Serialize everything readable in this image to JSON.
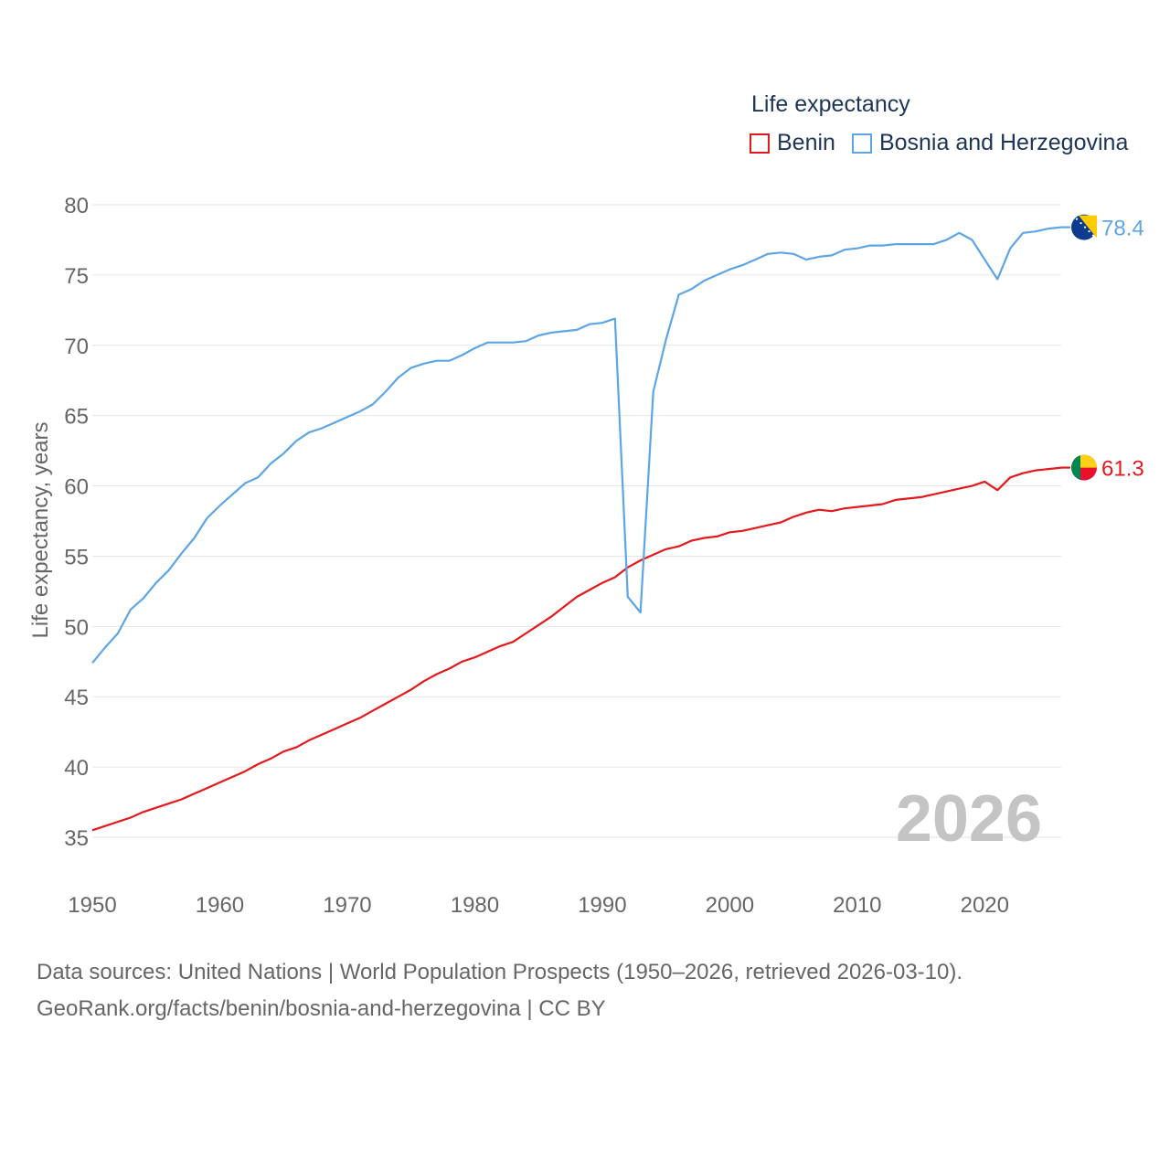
{
  "chart_data": {
    "type": "line",
    "legend_title": "Life expectancy",
    "ylabel": "Life expectancy, years",
    "xlabel": "",
    "ylim": [
      35,
      80
    ],
    "xlim": [
      1950,
      2026
    ],
    "yticks": [
      35,
      40,
      45,
      50,
      55,
      60,
      65,
      70,
      75,
      80
    ],
    "xticks": [
      1950,
      1960,
      1970,
      1980,
      1990,
      2000,
      2010,
      2020
    ],
    "big_year_label": "2026",
    "x": [
      1950,
      1951,
      1952,
      1953,
      1954,
      1955,
      1956,
      1957,
      1958,
      1959,
      1960,
      1961,
      1962,
      1963,
      1964,
      1965,
      1966,
      1967,
      1968,
      1969,
      1970,
      1971,
      1972,
      1973,
      1974,
      1975,
      1976,
      1977,
      1978,
      1979,
      1980,
      1981,
      1982,
      1983,
      1984,
      1985,
      1986,
      1987,
      1988,
      1989,
      1990,
      1991,
      1992,
      1993,
      1994,
      1995,
      1996,
      1997,
      1998,
      1999,
      2000,
      2001,
      2002,
      2003,
      2004,
      2005,
      2006,
      2007,
      2008,
      2009,
      2010,
      2011,
      2012,
      2013,
      2014,
      2015,
      2016,
      2017,
      2018,
      2019,
      2020,
      2021,
      2022,
      2023,
      2024,
      2025,
      2026
    ],
    "series": [
      {
        "name": "Benin",
        "color": "#e3191c",
        "end_label": "61.3",
        "values": [
          35.5,
          35.8,
          36.1,
          36.4,
          36.8,
          37.1,
          37.4,
          37.7,
          38.1,
          38.5,
          38.9,
          39.3,
          39.7,
          40.2,
          40.6,
          41.1,
          41.4,
          41.9,
          42.3,
          42.7,
          43.1,
          43.5,
          44.0,
          44.5,
          45.0,
          45.5,
          46.1,
          46.6,
          47.0,
          47.5,
          47.8,
          48.2,
          48.6,
          48.9,
          49.5,
          50.1,
          50.7,
          51.4,
          52.1,
          52.6,
          53.1,
          53.5,
          54.2,
          54.7,
          55.1,
          55.5,
          55.7,
          56.1,
          56.3,
          56.4,
          56.7,
          56.8,
          57.0,
          57.2,
          57.4,
          57.8,
          58.1,
          58.3,
          58.2,
          58.4,
          58.5,
          58.6,
          58.7,
          59.0,
          59.1,
          59.2,
          59.4,
          59.6,
          59.8,
          60.0,
          60.3,
          59.7,
          60.6,
          60.9,
          61.1,
          61.2,
          61.3
        ]
      },
      {
        "name": "Bosnia and Herzegovina",
        "color": "#5da5e5",
        "end_label": "78.4",
        "values": [
          47.4,
          48.5,
          49.5,
          51.2,
          52.0,
          53.1,
          54.0,
          55.2,
          56.3,
          57.7,
          58.6,
          59.4,
          60.2,
          60.6,
          61.6,
          62.3,
          63.2,
          63.8,
          64.1,
          64.5,
          64.9,
          65.3,
          65.8,
          66.7,
          67.7,
          68.4,
          68.7,
          68.9,
          68.9,
          69.3,
          69.8,
          70.2,
          70.2,
          70.2,
          70.3,
          70.7,
          70.9,
          71.0,
          71.1,
          71.5,
          71.6,
          71.9,
          52.1,
          51.0,
          66.7,
          70.4,
          73.6,
          74.0,
          74.6,
          75.0,
          75.4,
          75.7,
          76.1,
          76.5,
          76.6,
          76.5,
          76.1,
          76.3,
          76.4,
          76.8,
          76.9,
          77.1,
          77.1,
          77.2,
          77.2,
          77.2,
          77.2,
          77.5,
          78.0,
          77.5,
          76.1,
          74.7,
          76.9,
          78.0,
          78.1,
          78.3,
          78.4
        ]
      }
    ]
  },
  "sources": {
    "line1": "Data sources: United Nations | World Population Prospects (1950–2026, retrieved 2026-03-10).",
    "line2": "GeoRank.org/facts/benin/bosnia-and-herzegovina | CC BY"
  }
}
